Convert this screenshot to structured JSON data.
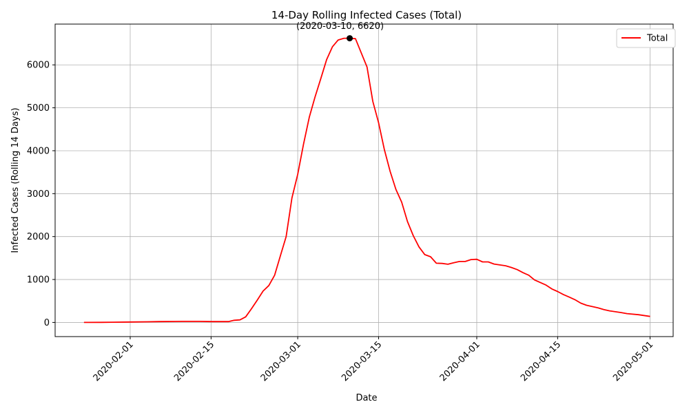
{
  "chart_data": {
    "type": "line",
    "title": "14-Day Rolling Infected Cases (Total)",
    "xlabel": "Date",
    "ylabel": "Infected Cases (Rolling 14 Days)",
    "x_ticks": [
      "2020-02-01",
      "2020-02-15",
      "2020-03-01",
      "2020-03-15",
      "2020-04-01",
      "2020-04-15",
      "2020-05-01"
    ],
    "y_ticks": [
      0,
      1000,
      2000,
      3000,
      4000,
      5000,
      6000
    ],
    "xlim": [
      "2020-01-19",
      "2020-05-05"
    ],
    "ylim": [
      -330,
      6950
    ],
    "grid": true,
    "legend_position": "top-right",
    "series": [
      {
        "name": "Total",
        "color": "#ff0000",
        "points": [
          [
            "2020-01-24",
            0
          ],
          [
            "2020-01-27",
            2
          ],
          [
            "2020-01-29",
            5
          ],
          [
            "2020-02-01",
            10
          ],
          [
            "2020-02-04",
            15
          ],
          [
            "2020-02-06",
            20
          ],
          [
            "2020-02-10",
            25
          ],
          [
            "2020-02-13",
            25
          ],
          [
            "2020-02-15",
            20
          ],
          [
            "2020-02-18",
            20
          ],
          [
            "2020-02-19",
            50
          ],
          [
            "2020-02-20",
            60
          ],
          [
            "2020-02-21",
            130
          ],
          [
            "2020-02-22",
            320
          ],
          [
            "2020-02-23",
            520
          ],
          [
            "2020-02-24",
            730
          ],
          [
            "2020-02-25",
            860
          ],
          [
            "2020-02-26",
            1100
          ],
          [
            "2020-02-27",
            1550
          ],
          [
            "2020-02-28",
            2000
          ],
          [
            "2020-02-29",
            2900
          ],
          [
            "2020-03-01",
            3450
          ],
          [
            "2020-03-02",
            4150
          ],
          [
            "2020-03-03",
            4780
          ],
          [
            "2020-03-04",
            5250
          ],
          [
            "2020-03-05",
            5680
          ],
          [
            "2020-03-06",
            6120
          ],
          [
            "2020-03-07",
            6420
          ],
          [
            "2020-03-08",
            6580
          ],
          [
            "2020-03-09",
            6620
          ],
          [
            "2020-03-10",
            6620
          ],
          [
            "2020-03-11",
            6610
          ],
          [
            "2020-03-12",
            6280
          ],
          [
            "2020-03-13",
            5950
          ],
          [
            "2020-03-14",
            5150
          ],
          [
            "2020-03-15",
            4650
          ],
          [
            "2020-03-16",
            4030
          ],
          [
            "2020-03-17",
            3520
          ],
          [
            "2020-03-18",
            3100
          ],
          [
            "2020-03-19",
            2800
          ],
          [
            "2020-03-20",
            2350
          ],
          [
            "2020-03-21",
            2020
          ],
          [
            "2020-03-22",
            1760
          ],
          [
            "2020-03-23",
            1580
          ],
          [
            "2020-03-24",
            1530
          ],
          [
            "2020-03-25",
            1380
          ],
          [
            "2020-03-26",
            1375
          ],
          [
            "2020-03-27",
            1355
          ],
          [
            "2020-03-28",
            1390
          ],
          [
            "2020-03-29",
            1420
          ],
          [
            "2020-03-30",
            1420
          ],
          [
            "2020-03-31",
            1465
          ],
          [
            "2020-04-01",
            1470
          ],
          [
            "2020-04-02",
            1410
          ],
          [
            "2020-04-03",
            1410
          ],
          [
            "2020-04-04",
            1360
          ],
          [
            "2020-04-05",
            1340
          ],
          [
            "2020-04-06",
            1320
          ],
          [
            "2020-04-07",
            1280
          ],
          [
            "2020-04-08",
            1230
          ],
          [
            "2020-04-09",
            1160
          ],
          [
            "2020-04-10",
            1100
          ],
          [
            "2020-04-11",
            990
          ],
          [
            "2020-04-12",
            930
          ],
          [
            "2020-04-13",
            870
          ],
          [
            "2020-04-14",
            780
          ],
          [
            "2020-04-15",
            720
          ],
          [
            "2020-04-16",
            650
          ],
          [
            "2020-04-17",
            590
          ],
          [
            "2020-04-18",
            530
          ],
          [
            "2020-04-19",
            450
          ],
          [
            "2020-04-20",
            400
          ],
          [
            "2020-04-22",
            340
          ],
          [
            "2020-04-23",
            300
          ],
          [
            "2020-04-24",
            270
          ],
          [
            "2020-04-26",
            230
          ],
          [
            "2020-04-27",
            205
          ],
          [
            "2020-04-29",
            180
          ],
          [
            "2020-05-01",
            140
          ]
        ]
      }
    ],
    "annotations": [
      {
        "x": "2020-03-10",
        "y": 6620,
        "text": "(2020-03-10, 6620)",
        "marker": "dot",
        "marker_color": "#000000"
      }
    ]
  }
}
